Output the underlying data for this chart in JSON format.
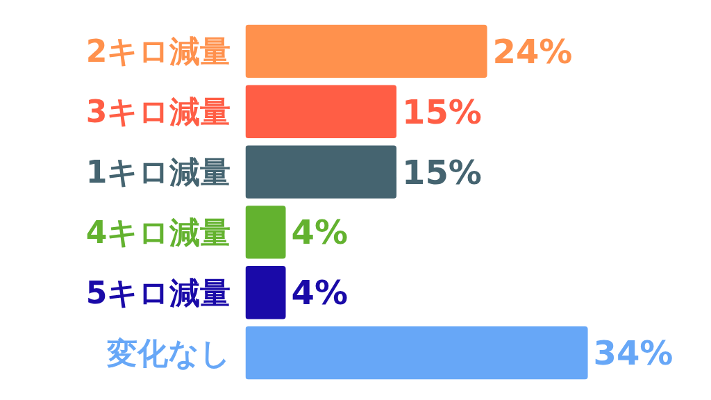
{
  "chart_data": {
    "type": "bar",
    "orientation": "horizontal",
    "categories": [
      "2キロ減量",
      "3キロ減量",
      "1キロ減量",
      "4キロ減量",
      "5キロ減量",
      "変化なし"
    ],
    "values": [
      24,
      15,
      15,
      4,
      4,
      34
    ],
    "value_labels": [
      "24%",
      "15%",
      "15%",
      "4%",
      "4%",
      "34%"
    ],
    "colors": [
      "#ff914d",
      "#ff5e45",
      "#456470",
      "#63b22f",
      "#1a0aa8",
      "#67a7f7"
    ],
    "tick_labels": false
  }
}
